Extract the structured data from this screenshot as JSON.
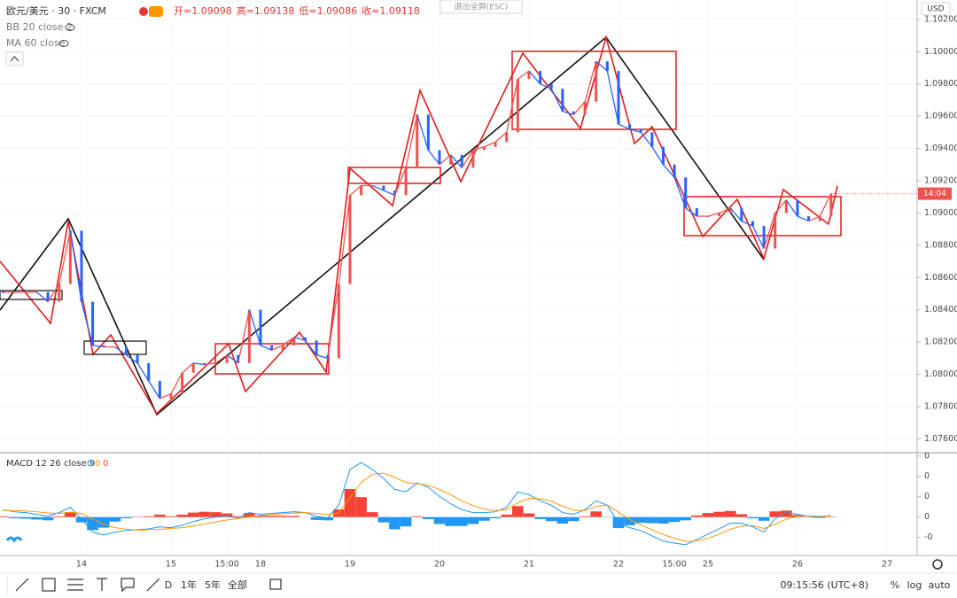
{
  "header": {
    "symbol": "欧元/美元 · 30 · FXCM",
    "ohlc": [
      "开=1.09098",
      "高=1.09138",
      "低=1.09086",
      "收=1.09118"
    ],
    "indicators": [
      "BB 20 close 2",
      "MA 60 close"
    ],
    "exit_fullscreen": "退出全屏(ESC)"
  },
  "chart_data": {
    "type": "line",
    "currency": "USD",
    "last_label": "14:04",
    "categories": [
      null,
      null,
      null,
      null,
      null,
      null,
      null,
      "14",
      null,
      null,
      null,
      null,
      null,
      null,
      null,
      "15",
      null,
      null,
      null,
      null,
      "15:00",
      null,
      null,
      "18",
      null,
      null,
      null,
      null,
      null,
      null,
      null,
      "19",
      null,
      null,
      null,
      null,
      null,
      null,
      null,
      "20",
      null,
      null,
      null,
      null,
      null,
      null,
      null,
      "21",
      null,
      null,
      null,
      null,
      null,
      null,
      null,
      "22",
      null,
      null,
      null,
      null,
      "15:00",
      null,
      null,
      "25",
      null,
      null,
      null,
      null,
      null,
      null,
      null,
      "26",
      null,
      null,
      null,
      null,
      null,
      null,
      null,
      "27"
    ],
    "values": [
      1.0851,
      1.0851,
      1.0851,
      1.0851,
      1.0845,
      1.0856,
      1.0889,
      1.0845,
      1.0818,
      1.0817,
      1.0817,
      1.0812,
      1.0807,
      1.0796,
      1.0785,
      1.0788,
      1.0801,
      1.0807,
      1.0806,
      1.0807,
      1.0812,
      1.0807,
      1.084,
      1.0818,
      1.0815,
      1.0818,
      1.0823,
      1.0821,
      1.0812,
      1.081,
      1.0856,
      1.0911,
      1.0917,
      1.0917,
      1.0914,
      1.0911,
      1.0928,
      1.0961,
      1.0939,
      1.093,
      1.0936,
      1.0928,
      1.0939,
      1.0941,
      1.0944,
      1.095,
      1.0983,
      1.0988,
      1.098,
      1.0977,
      1.0963,
      1.0961,
      1.0969,
      1.0994,
      1.0988,
      1.0955,
      1.0952,
      1.095,
      1.0941,
      1.093,
      1.0922,
      1.0903,
      1.0898,
      1.0898,
      1.09,
      1.0903,
      1.0895,
      1.0892,
      1.0878,
      1.09,
      1.0908,
      1.0898,
      1.0895,
      1.0898,
      1.0912,
      null,
      null,
      null,
      null,
      null
    ],
    "up_color": "#ef5350",
    "down_color": "#2962ff",
    "ylim": [
      1.0752,
      1.1032
    ],
    "yticks": [
      {
        "value": 1.076,
        "label": "1.07600"
      },
      {
        "value": 1.078,
        "label": "1.07800"
      },
      {
        "value": 1.08,
        "label": "1.08000"
      },
      {
        "value": 1.082,
        "label": "1.08200"
      },
      {
        "value": 1.084,
        "label": "1.08400"
      },
      {
        "value": 1.086,
        "label": "1.08600"
      },
      {
        "value": 1.088,
        "label": "1.08800"
      },
      {
        "value": 1.09,
        "label": "1.09000"
      },
      {
        "value": 1.092,
        "label": "1.09200"
      },
      {
        "value": 1.094,
        "label": "1.09400"
      },
      {
        "value": 1.096,
        "label": "1.09600"
      },
      {
        "value": 1.098,
        "label": "1.09800"
      },
      {
        "value": 1.1,
        "label": "1.10000"
      },
      {
        "value": 1.102,
        "label": "1.10200"
      }
    ],
    "grid": true,
    "macd": {
      "title": "MACD 12 26 close 9",
      "readouts": [
        0,
        0,
        0
      ],
      "readout_colors": [
        "#2196f3",
        "#ff9800",
        "#f44336"
      ],
      "series": [
        {
          "color": "#2196f3",
          "values": [
            0.00018,
            0.00013,
            0.00011,
            7e-05,
            2e-05,
            0.00011,
            0.00024,
            -4e-05,
            -0.00037,
            -0.00044,
            -0.00037,
            -0.00033,
            -0.00031,
            -0.00029,
            -0.00024,
            -0.00026,
            -0.0002,
            -0.00011,
            -4e-05,
            0,
            2e-05,
            -2e-05,
            0.00011,
            7e-05,
            9e-05,
            0.00011,
            0.00013,
            0.00011,
            2e-05,
            -2e-05,
            0.00029,
            0.00117,
            0.00134,
            0.00117,
            0.00095,
            0.00068,
            0.00062,
            0.00084,
            0.00073,
            0.00051,
            0.00033,
            0.00018,
            0.00011,
            0.00011,
            0.00013,
            0.00024,
            0.00062,
            0.00055,
            0.0004,
            0.00029,
            0.00011,
            7e-05,
            0.00018,
            0.0004,
            0.00029,
            -0.00015,
            -0.00026,
            -0.00033,
            -0.00046,
            -0.00059,
            -0.00064,
            -0.00068,
            -0.00055,
            -0.00042,
            -0.00029,
            -0.00015,
            -0.00015,
            -0.00024,
            -0.00037,
            -4e-05,
            0.00011,
            7e-05,
            2e-05,
            0,
            4e-05,
            null,
            null,
            null,
            null,
            null
          ]
        },
        {
          "color": "#ff9800",
          "values": [
            0.00016,
            0.00016,
            0.00015,
            0.00013,
            0.0001,
            9e-05,
            0.00012,
            9e-05,
            -5e-05,
            -0.00018,
            -0.00026,
            -0.0003,
            -0.00032,
            -0.00031,
            -0.0003,
            -0.00028,
            -0.00026,
            -0.00022,
            -0.00017,
            -0.00012,
            -7e-05,
            -4e-05,
            1e-05,
            4e-05,
            6e-05,
            8e-05,
            0.0001,
            0.00011,
            9e-05,
            6e-05,
            0.0001,
            0.00048,
            0.00085,
            0.00105,
            0.00108,
            0.00098,
            0.00085,
            0.00082,
            0.00078,
            0.00068,
            0.00055,
            0.0004,
            0.00028,
            0.0002,
            0.00016,
            0.00018,
            0.00035,
            0.00046,
            0.00045,
            0.00039,
            0.00027,
            0.00017,
            0.00016,
            0.00026,
            0.0003,
            0.00012,
            -6e-05,
            -0.00019,
            -0.00031,
            -0.00043,
            -0.00052,
            -0.0006,
            -0.00059,
            -0.00052,
            -0.00042,
            -0.0003,
            -0.00022,
            -0.00021,
            -0.00028,
            -0.00018,
            -5e-05,
            2e-05,
            3e-05,
            2e-05,
            3e-05,
            null,
            null,
            null,
            null,
            null
          ]
        }
      ],
      "histogram": {
        "up_color": "#f44336",
        "down_color": "#2196f3",
        "values": [
          2e-05,
          -3e-05,
          -4e-05,
          -6e-05,
          -8e-05,
          2e-05,
          0.00012,
          -0.00013,
          -0.00032,
          -0.00026,
          -0.00011,
          -3e-05,
          1e-05,
          2e-05,
          6e-05,
          2e-05,
          6e-05,
          0.00011,
          0.00013,
          0.00012,
          9e-05,
          2e-05,
          0.0001,
          3e-05,
          3e-05,
          3e-05,
          3e-05,
          0,
          -7e-05,
          -8e-05,
          0.00019,
          0.00069,
          0.00049,
          0.00012,
          -0.00013,
          -0.0003,
          -0.00023,
          2e-05,
          -5e-05,
          -0.00017,
          -0.00022,
          -0.00022,
          -0.00017,
          -9e-05,
          -3e-05,
          6e-05,
          0.00027,
          9e-05,
          -5e-05,
          -0.0001,
          -0.00016,
          -0.0001,
          2e-05,
          0.00014,
          -1e-05,
          -0.00027,
          -0.0002,
          -0.00014,
          -0.00015,
          -0.00016,
          -0.00012,
          -8e-05,
          4e-05,
          0.0001,
          0.00013,
          0.00015,
          7e-05,
          -3e-05,
          -9e-05,
          0.00014,
          0.00016,
          5e-05,
          -1e-05,
          -2e-05,
          1e-05,
          null,
          null,
          null,
          null,
          null
        ]
      },
      "ylim": [
        -0.0009,
        0.00156
      ],
      "yticks": [
        {
          "value": 0.0015,
          "label": "0"
        },
        {
          "value": 0.001,
          "label": "0"
        },
        {
          "value": 0.0005,
          "label": "0"
        },
        0,
        {
          "value": -0.0005,
          "label": "-0"
        }
      ]
    }
  },
  "toolbar": {
    "timeframes": [
      "D",
      "1年",
      "5年",
      "全部"
    ],
    "clock": "09:15:56 (UTC+8)",
    "scale_options": [
      "%",
      "log",
      "auto"
    ]
  }
}
